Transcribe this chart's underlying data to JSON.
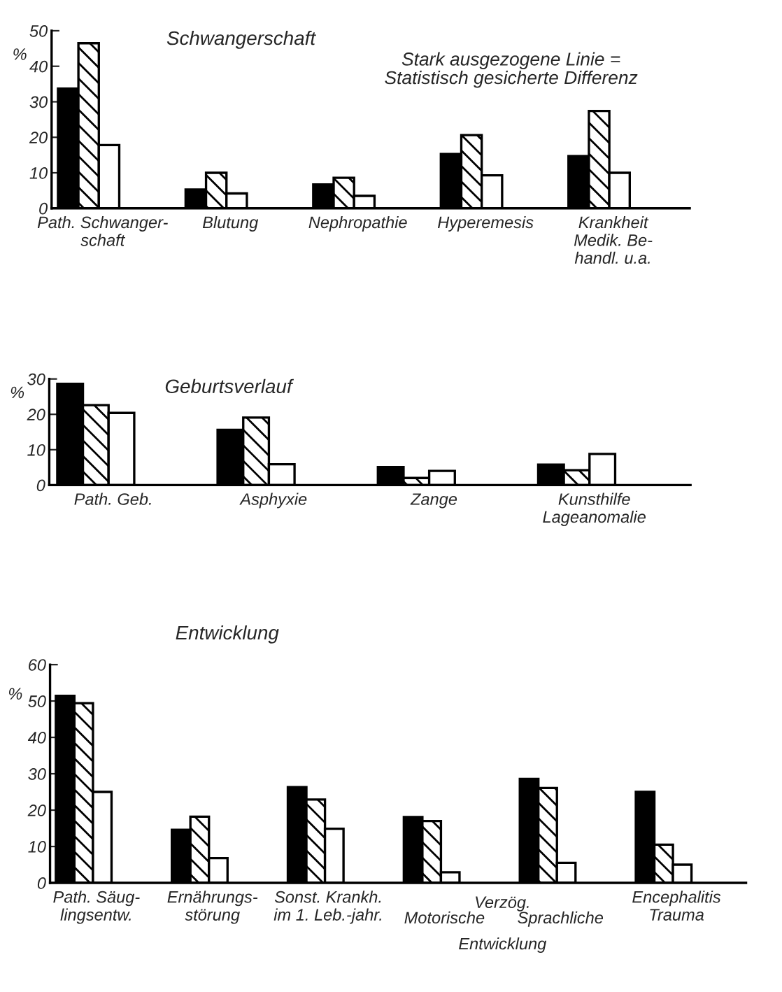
{
  "chart_data": [
    {
      "type": "bar",
      "title": "Schwangerschaft",
      "ylabel": "%",
      "categories": [
        "Path. Schwanger-\nschaft",
        "Blutung",
        "Nephropathie",
        "Hyperemesis",
        "Krankheit\nMedik. Be-\nhandl. u.a."
      ],
      "ylim": [
        0,
        50
      ],
      "yticks": [
        0,
        10,
        20,
        30,
        40,
        50
      ],
      "annotations": [
        "Stark ausgezogene Linie =\nStatistisch gesicherte Differenz"
      ],
      "series": [
        {
          "color": "#000000",
          "values": [
            33.7,
            5.3,
            6.7,
            15.3,
            14.7
          ]
        },
        {
          "color": "#000000",
          "values": [
            46.5,
            10,
            8.6,
            20.6,
            27.4
          ]
        },
        {
          "color": "#ffffff",
          "values": [
            17.8,
            4.2,
            3.5,
            9.3,
            10
          ]
        }
      ]
    },
    {
      "type": "bar",
      "title": "Geburtsverlauf",
      "ylabel": "%",
      "categories": [
        "Path. Geb.",
        "Asphyxie",
        "Zange",
        "Kunsthilfe\nLageanomalie"
      ],
      "ylim": [
        0,
        30
      ],
      "yticks": [
        0,
        10,
        20,
        30
      ],
      "series": [
        {
          "color": "#000000",
          "values": [
            28.6,
            15.6,
            5.1,
            5.8
          ]
        },
        {
          "color": "#000000",
          "values": [
            22.6,
            19.1,
            2,
            4.2
          ]
        },
        {
          "color": "#ffffff",
          "values": [
            20.4,
            5.9,
            4,
            8.8
          ]
        }
      ]
    },
    {
      "type": "bar",
      "title": "Entwicklung",
      "ylabel": "%",
      "categories": [
        "Path. Säug-\nlingsentw.",
        "Ernährungs-\nstörung",
        "Sonst. Krankh.\nim 1. Leb.-jahr.",
        "Motorische",
        "Sprachliche",
        "Encephalitis\nTrauma"
      ],
      "ylim": [
        0,
        60
      ],
      "yticks": [
        0,
        10,
        20,
        30,
        40,
        50,
        60
      ],
      "annotations": [
        "Verzög.",
        "Entwicklung"
      ],
      "series": [
        {
          "color": "#000000",
          "values": [
            51.4,
            14.6,
            26.3,
            18.1,
            28.6,
            25
          ]
        },
        {
          "color": "#000000",
          "values": [
            49.4,
            18.2,
            22.9,
            17,
            26.1,
            10.5
          ]
        },
        {
          "color": "#ffffff",
          "values": [
            25,
            6.8,
            14.9,
            2.9,
            5.5,
            5
          ]
        }
      ]
    }
  ]
}
